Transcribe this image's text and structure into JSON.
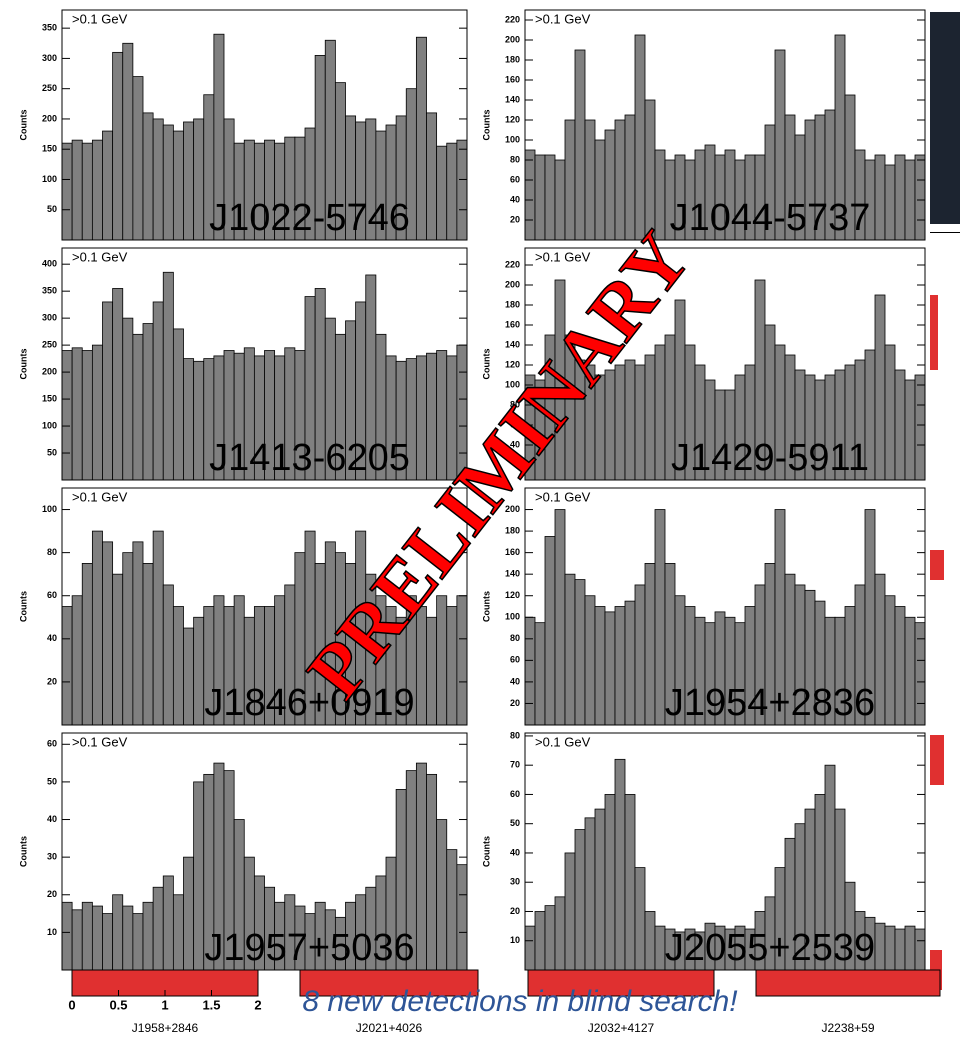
{
  "chart_data": [
    {
      "type": "histogram",
      "annotation": ">0.1 GeV",
      "ylabel": "Counts",
      "label": "J1022-5746",
      "color": "#808080",
      "xlim": [
        0,
        2
      ],
      "bins": [
        0,
        0.05,
        0.1,
        0.15,
        0.2,
        0.25,
        0.3,
        0.35,
        0.4,
        0.45,
        0.5,
        0.55,
        0.6,
        0.65,
        0.7,
        0.75,
        0.8,
        0.85,
        0.9,
        0.95,
        1,
        1.05,
        1.1,
        1.15,
        1.2,
        1.25,
        1.3,
        1.35,
        1.4,
        1.45,
        1.5,
        1.55,
        1.6,
        1.65,
        1.7,
        1.75,
        1.8,
        1.85,
        1.9,
        1.95,
        2
      ],
      "values": [
        160,
        165,
        160,
        165,
        180,
        310,
        325,
        270,
        210,
        200,
        190,
        180,
        195,
        200,
        240,
        340,
        200,
        160,
        165,
        160,
        165,
        160,
        170,
        170,
        185,
        305,
        330,
        260,
        205,
        195,
        200,
        180,
        190,
        205,
        250,
        335,
        210,
        155,
        160,
        165
      ],
      "ylim": [
        0,
        380
      ],
      "yticks": [
        50,
        100,
        150,
        200,
        250,
        300,
        350
      ]
    },
    {
      "type": "histogram",
      "annotation": ">0.1 GeV",
      "ylabel": "Counts",
      "label": "J1044-5737",
      "color": "#808080",
      "xlim": [
        0,
        2
      ],
      "bins": [
        0,
        0.05,
        0.1,
        0.15,
        0.2,
        0.25,
        0.3,
        0.35,
        0.4,
        0.45,
        0.5,
        0.55,
        0.6,
        0.65,
        0.7,
        0.75,
        0.8,
        0.85,
        0.9,
        0.95,
        1,
        1.05,
        1.1,
        1.15,
        1.2,
        1.25,
        1.3,
        1.35,
        1.4,
        1.45,
        1.5,
        1.55,
        1.6,
        1.65,
        1.7,
        1.75,
        1.8,
        1.85,
        1.9,
        1.95,
        2
      ],
      "values": [
        90,
        85,
        85,
        80,
        120,
        190,
        120,
        100,
        110,
        120,
        125,
        205,
        140,
        90,
        80,
        85,
        80,
        90,
        95,
        85,
        90,
        80,
        85,
        85,
        115,
        190,
        125,
        105,
        120,
        125,
        130,
        205,
        145,
        90,
        80,
        85,
        75,
        85,
        80,
        85
      ],
      "ylim": [
        0,
        230
      ],
      "yticks": [
        20,
        40,
        60,
        80,
        100,
        120,
        140,
        160,
        180,
        200,
        220
      ]
    },
    {
      "type": "histogram",
      "annotation": ">0.1 GeV",
      "ylabel": "Counts",
      "label": "J1413-6205",
      "color": "#808080",
      "xlim": [
        0,
        2
      ],
      "bins": [
        0,
        0.05,
        0.1,
        0.15,
        0.2,
        0.25,
        0.3,
        0.35,
        0.4,
        0.45,
        0.5,
        0.55,
        0.6,
        0.65,
        0.7,
        0.75,
        0.8,
        0.85,
        0.9,
        0.95,
        1,
        1.05,
        1.1,
        1.15,
        1.2,
        1.25,
        1.3,
        1.35,
        1.4,
        1.45,
        1.5,
        1.55,
        1.6,
        1.65,
        1.7,
        1.75,
        1.8,
        1.85,
        1.9,
        1.95,
        2
      ],
      "values": [
        240,
        245,
        240,
        250,
        330,
        355,
        300,
        270,
        290,
        330,
        385,
        280,
        225,
        220,
        225,
        230,
        240,
        235,
        245,
        230,
        240,
        230,
        245,
        240,
        340,
        355,
        300,
        270,
        295,
        330,
        380,
        270,
        230,
        220,
        225,
        230,
        235,
        240,
        230,
        250
      ],
      "ylim": [
        0,
        430
      ],
      "yticks": [
        50,
        100,
        150,
        200,
        250,
        300,
        350,
        400
      ]
    },
    {
      "type": "histogram",
      "annotation": ">0.1 GeV",
      "ylabel": "Counts",
      "label": "J1429-5911",
      "color": "#808080",
      "xlim": [
        0,
        2
      ],
      "bins": [
        0,
        0.05,
        0.1,
        0.15,
        0.2,
        0.25,
        0.3,
        0.35,
        0.4,
        0.45,
        0.5,
        0.55,
        0.6,
        0.65,
        0.7,
        0.75,
        0.8,
        0.85,
        0.9,
        0.95,
        1,
        1.05,
        1.1,
        1.15,
        1.2,
        1.25,
        1.3,
        1.35,
        1.4,
        1.45,
        1.5,
        1.55,
        1.6,
        1.65,
        1.7,
        1.75,
        1.8,
        1.85,
        1.9,
        1.95,
        2
      ],
      "values": [
        110,
        105,
        150,
        205,
        150,
        125,
        120,
        110,
        115,
        120,
        125,
        120,
        130,
        140,
        150,
        185,
        140,
        120,
        105,
        95,
        95,
        110,
        120,
        205,
        160,
        140,
        130,
        115,
        110,
        105,
        110,
        115,
        120,
        125,
        135,
        190,
        140,
        115,
        105,
        110
      ],
      "ylim": [
        5,
        237
      ],
      "yticks": [
        40,
        60,
        80,
        100,
        120,
        140,
        160,
        180,
        200,
        220
      ]
    },
    {
      "type": "histogram",
      "annotation": ">0.1 GeV",
      "ylabel": "Counts",
      "label": "J1846+0919",
      "color": "#808080",
      "xlim": [
        0,
        2
      ],
      "bins": [
        0,
        0.05,
        0.1,
        0.15,
        0.2,
        0.25,
        0.3,
        0.35,
        0.4,
        0.45,
        0.5,
        0.55,
        0.6,
        0.65,
        0.7,
        0.75,
        0.8,
        0.85,
        0.9,
        0.95,
        1,
        1.05,
        1.1,
        1.15,
        1.2,
        1.25,
        1.3,
        1.35,
        1.4,
        1.45,
        1.5,
        1.55,
        1.6,
        1.65,
        1.7,
        1.75,
        1.8,
        1.85,
        1.9,
        1.95,
        2
      ],
      "values": [
        55,
        60,
        75,
        90,
        85,
        70,
        80,
        85,
        75,
        90,
        65,
        55,
        45,
        50,
        55,
        60,
        55,
        60,
        50,
        55,
        55,
        60,
        65,
        80,
        90,
        75,
        85,
        80,
        75,
        90,
        70,
        60,
        55,
        50,
        60,
        55,
        50,
        60,
        55,
        60
      ],
      "ylim": [
        0,
        110
      ],
      "yticks": [
        20,
        40,
        60,
        80,
        100
      ]
    },
    {
      "type": "histogram",
      "annotation": ">0.1 GeV",
      "ylabel": "Counts",
      "label": "J1954+2836",
      "color": "#808080",
      "xlim": [
        0,
        2
      ],
      "bins": [
        0,
        0.05,
        0.1,
        0.15,
        0.2,
        0.25,
        0.3,
        0.35,
        0.4,
        0.45,
        0.5,
        0.55,
        0.6,
        0.65,
        0.7,
        0.75,
        0.8,
        0.85,
        0.9,
        0.95,
        1,
        1.05,
        1.1,
        1.15,
        1.2,
        1.25,
        1.3,
        1.35,
        1.4,
        1.45,
        1.5,
        1.55,
        1.6,
        1.65,
        1.7,
        1.75,
        1.8,
        1.85,
        1.9,
        1.95,
        2
      ],
      "values": [
        100,
        95,
        175,
        200,
        140,
        135,
        120,
        110,
        105,
        110,
        115,
        130,
        150,
        200,
        150,
        120,
        110,
        100,
        95,
        105,
        100,
        95,
        110,
        130,
        150,
        200,
        140,
        130,
        125,
        115,
        100,
        100,
        110,
        130,
        200,
        140,
        120,
        110,
        100,
        95
      ],
      "ylim": [
        0,
        220
      ],
      "yticks": [
        20,
        40,
        60,
        80,
        100,
        120,
        140,
        160,
        180,
        200
      ]
    },
    {
      "type": "histogram",
      "annotation": ">0.1 GeV",
      "ylabel": "Counts",
      "label": "J1957+5036",
      "color": "#808080",
      "xlim": [
        0,
        2
      ],
      "bins": [
        0,
        0.05,
        0.1,
        0.15,
        0.2,
        0.25,
        0.3,
        0.35,
        0.4,
        0.45,
        0.5,
        0.55,
        0.6,
        0.65,
        0.7,
        0.75,
        0.8,
        0.85,
        0.9,
        0.95,
        1,
        1.05,
        1.1,
        1.15,
        1.2,
        1.25,
        1.3,
        1.35,
        1.4,
        1.45,
        1.5,
        1.55,
        1.6,
        1.65,
        1.7,
        1.75,
        1.8,
        1.85,
        1.9,
        1.95,
        2
      ],
      "values": [
        18,
        16,
        18,
        17,
        15,
        20,
        17,
        15,
        18,
        22,
        25,
        20,
        30,
        50,
        52,
        55,
        53,
        40,
        30,
        25,
        22,
        18,
        20,
        17,
        15,
        18,
        16,
        14,
        18,
        20,
        22,
        25,
        30,
        48,
        53,
        55,
        52,
        40,
        32,
        28
      ],
      "ylim": [
        0,
        63
      ],
      "yticks": [
        10,
        20,
        30,
        40,
        50,
        60
      ]
    },
    {
      "type": "histogram",
      "annotation": ">0.1 GeV",
      "ylabel": "Counts",
      "label": "J2055+2539",
      "color": "#808080",
      "xlim": [
        0,
        2
      ],
      "bins": [
        0,
        0.05,
        0.1,
        0.15,
        0.2,
        0.25,
        0.3,
        0.35,
        0.4,
        0.45,
        0.5,
        0.55,
        0.6,
        0.65,
        0.7,
        0.75,
        0.8,
        0.85,
        0.9,
        0.95,
        1,
        1.05,
        1.1,
        1.15,
        1.2,
        1.25,
        1.3,
        1.35,
        1.4,
        1.45,
        1.5,
        1.55,
        1.6,
        1.65,
        1.7,
        1.75,
        1.8,
        1.85,
        1.9,
        1.95,
        2
      ],
      "values": [
        15,
        20,
        22,
        25,
        40,
        48,
        52,
        55,
        60,
        72,
        60,
        35,
        20,
        15,
        14,
        13,
        14,
        13,
        16,
        15,
        14,
        15,
        14,
        20,
        25,
        35,
        45,
        50,
        55,
        60,
        70,
        55,
        30,
        20,
        18,
        16,
        15,
        14,
        15,
        14
      ],
      "ylim": [
        0,
        81
      ],
      "yticks": [
        10,
        20,
        30,
        40,
        50,
        60,
        70,
        80
      ]
    }
  ],
  "background_row": {
    "labels": [
      "J1958+2846",
      "J2021+4026",
      "J2032+4127",
      "J2238+59"
    ],
    "xticks": [
      0,
      0.5,
      1,
      1.5,
      2
    ]
  },
  "caption": "8 new detections in blind search!",
  "watermark": "PRELIMINARY"
}
